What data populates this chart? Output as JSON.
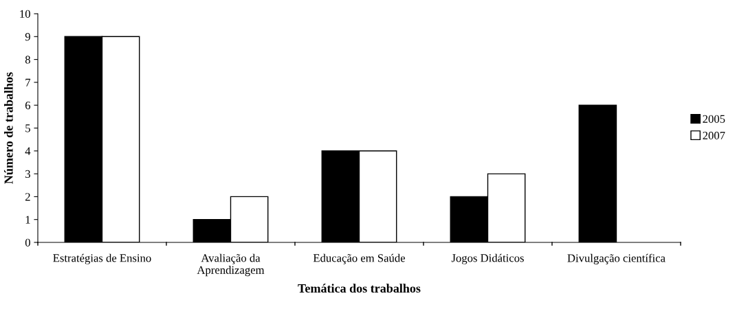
{
  "chart_data": {
    "type": "bar",
    "xlabel": "Temática dos trabalhos",
    "ylabel": "Número de trabalhos",
    "categories": [
      "Estratégias de Ensino",
      "Avaliação da\nAprendizagem",
      "Educação em Saúde",
      "Jogos Didáticos",
      "Divulgação científica"
    ],
    "series": [
      {
        "name": "2005",
        "color": "#000000",
        "values": [
          9,
          1,
          4,
          2,
          6
        ]
      },
      {
        "name": "2007",
        "color": "#ffffff",
        "values": [
          9,
          2,
          4,
          3,
          null
        ]
      }
    ],
    "ylim": [
      0,
      10
    ],
    "yticks": [
      0,
      1,
      2,
      3,
      4,
      5,
      6,
      7,
      8,
      9,
      10
    ],
    "grid": false,
    "legend": "right"
  }
}
